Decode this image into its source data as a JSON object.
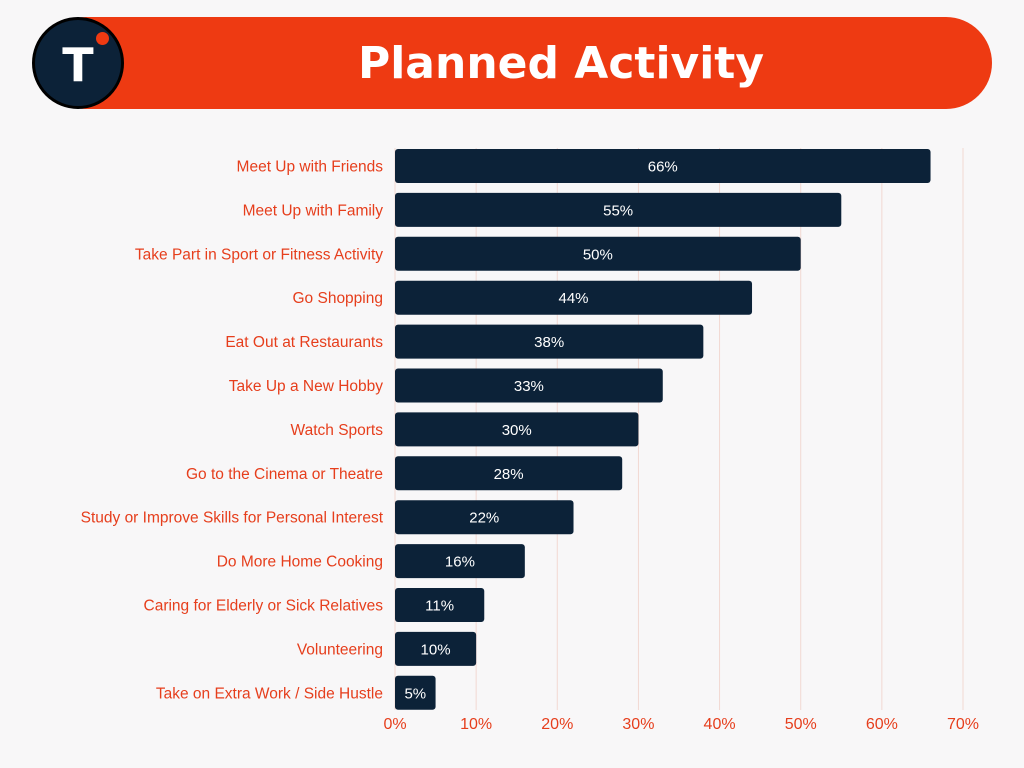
{
  "header": {
    "title": "Planned Activity",
    "logo_letter": "T"
  },
  "colors": {
    "accent": "#ee3a12",
    "bar": "#0c2238",
    "label": "#e63e1c",
    "grid": "#f2d8d2",
    "background": "#f8f7f8"
  },
  "chart_data": {
    "type": "bar",
    "orientation": "horizontal",
    "title": "Planned Activity",
    "categories": [
      "Meet Up with Friends",
      "Meet Up with Family",
      "Take Part in Sport or Fitness Activity",
      "Go Shopping",
      "Eat Out at Restaurants",
      "Take Up a New Hobby",
      "Watch Sports",
      "Go to the Cinema or Theatre",
      "Study or Improve Skills for Personal Interest",
      "Do More Home Cooking",
      "Caring for Elderly or Sick Relatives",
      "Volunteering",
      "Take on Extra Work / Side Hustle"
    ],
    "values": [
      66,
      55,
      50,
      44,
      38,
      33,
      30,
      28,
      22,
      16,
      11,
      10,
      5
    ],
    "value_labels": [
      "66%",
      "55%",
      "50%",
      "44%",
      "38%",
      "33%",
      "30%",
      "28%",
      "22%",
      "16%",
      "11%",
      "10%",
      "5%"
    ],
    "xlim": [
      0,
      70
    ],
    "x_ticks": [
      0,
      10,
      20,
      30,
      40,
      50,
      60,
      70
    ],
    "x_tick_labels": [
      "0%",
      "10%",
      "20%",
      "30%",
      "40%",
      "50%",
      "60%",
      "70%"
    ],
    "grid": true,
    "legend": "none"
  }
}
